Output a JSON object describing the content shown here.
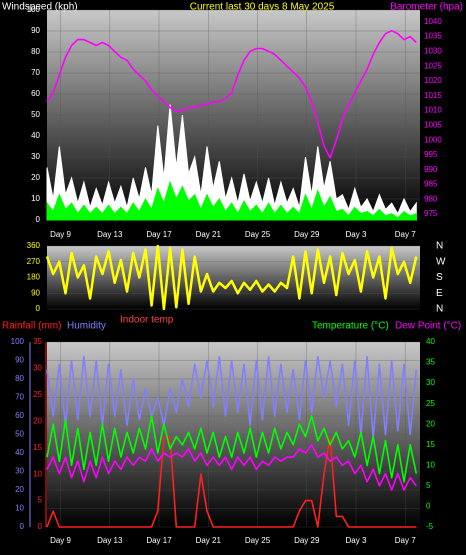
{
  "chart_data": [
    {
      "type": "line",
      "title": "Current last 30 days 8 May 2025",
      "ylabel": "Windspeed (kph)",
      "y2label": "Barometer (hpa)",
      "x": [
        0,
        0.5,
        1,
        1.5,
        2,
        2.5,
        3,
        3.5,
        4,
        4.5,
        5,
        5.5,
        6,
        6.5,
        7,
        7.5,
        8,
        8.5,
        9,
        9.5,
        10,
        10.5,
        11,
        11.5,
        12,
        12.5,
        13,
        13.5,
        14,
        14.5,
        15,
        15.5,
        16,
        16.5,
        17,
        17.5,
        18,
        18.5,
        19,
        19.5,
        20,
        20.5,
        21,
        21.5,
        22,
        22.5,
        23,
        23.5,
        24,
        24.5,
        25,
        25.5,
        26,
        26.5,
        27,
        27.5,
        28,
        28.5,
        29,
        29.5,
        30
      ],
      "xlim": [
        0,
        30.3
      ],
      "xticks": [
        {
          "value": 1.1,
          "label": "Day 9"
        },
        {
          "value": 5.1,
          "label": "Day 13"
        },
        {
          "value": 9.1,
          "label": "Day 17"
        },
        {
          "value": 13.1,
          "label": "Day 21"
        },
        {
          "value": 17.1,
          "label": "Day 25"
        },
        {
          "value": 21.1,
          "label": "Day 29"
        },
        {
          "value": 25.1,
          "label": "Day 3"
        },
        {
          "value": 29.1,
          "label": "Day 7"
        }
      ],
      "ylim": [
        0,
        100
      ],
      "yticks": [
        0,
        10,
        20,
        30,
        40,
        50,
        60,
        70,
        80,
        90,
        100
      ],
      "y2lim": [
        973,
        1044
      ],
      "y2ticks": [
        975,
        980,
        985,
        990,
        995,
        1000,
        1005,
        1010,
        1015,
        1020,
        1025,
        1030,
        1035,
        1040
      ],
      "grid": true,
      "series": [
        {
          "color": "#ffffff",
          "kind": "area",
          "values": [
            25,
            10,
            35,
            12,
            20,
            8,
            18,
            6,
            15,
            7,
            18,
            8,
            16,
            6,
            20,
            10,
            25,
            12,
            45,
            20,
            55,
            25,
            50,
            22,
            30,
            12,
            35,
            15,
            28,
            10,
            20,
            8,
            22,
            9,
            18,
            8,
            20,
            7,
            18,
            8,
            15,
            6,
            30,
            12,
            35,
            15,
            28,
            10,
            12,
            5,
            15,
            6,
            10,
            4,
            12,
            5,
            8,
            3,
            10,
            4,
            8
          ]
        },
        {
          "color": "#00ff00",
          "kind": "area",
          "values": [
            8,
            4,
            12,
            5,
            8,
            3,
            7,
            3,
            6,
            3,
            7,
            3,
            6,
            3,
            8,
            4,
            10,
            5,
            15,
            8,
            18,
            10,
            16,
            9,
            12,
            5,
            12,
            6,
            10,
            4,
            8,
            3,
            9,
            4,
            7,
            3,
            8,
            3,
            7,
            3,
            6,
            3,
            12,
            5,
            14,
            6,
            11,
            4,
            5,
            2,
            6,
            3,
            4,
            2,
            5,
            2,
            3,
            1,
            4,
            2,
            3
          ]
        },
        {
          "color": "#ff00ff",
          "kind": "line",
          "axis": "y2",
          "values": [
            1013,
            1016,
            1022,
            1028,
            1032,
            1034,
            1034,
            1033,
            1032,
            1033,
            1032,
            1030,
            1028,
            1027,
            1024,
            1022,
            1020,
            1017,
            1015,
            1013,
            1011,
            1010,
            1010,
            1011,
            1011,
            1012,
            1012,
            1013,
            1013,
            1014,
            1016,
            1022,
            1027,
            1030,
            1031,
            1031,
            1030,
            1029,
            1027,
            1025,
            1023,
            1021,
            1018,
            1013,
            1006,
            998,
            994,
            1000,
            1007,
            1012,
            1016,
            1020,
            1024,
            1029,
            1033,
            1036,
            1037,
            1036,
            1034,
            1035,
            1033
          ]
        }
      ]
    },
    {
      "type": "line",
      "x": [
        0,
        0.5,
        1,
        1.5,
        2,
        2.5,
        3,
        3.5,
        4,
        4.5,
        5,
        5.5,
        6,
        6.5,
        7,
        7.5,
        8,
        8.5,
        9,
        9.5,
        10,
        10.5,
        11,
        11.5,
        12,
        12.5,
        13,
        13.5,
        14,
        14.5,
        15,
        15.5,
        16,
        16.5,
        17,
        17.5,
        18,
        18.5,
        19,
        19.5,
        20,
        20.5,
        21,
        21.5,
        22,
        22.5,
        23,
        23.5,
        24,
        24.5,
        25,
        25.5,
        26,
        26.5,
        27,
        27.5,
        28,
        28.5,
        29,
        29.5,
        30
      ],
      "xlim": [
        0,
        30.3
      ],
      "ylim": [
        0,
        360
      ],
      "yticks": [
        0,
        90,
        180,
        270,
        360
      ],
      "y2lim": [
        0,
        360
      ],
      "y2ticks": [
        {
          "value": 0,
          "label": "N"
        },
        {
          "value": 90,
          "label": "E"
        },
        {
          "value": 180,
          "label": "S"
        },
        {
          "value": 270,
          "label": "W"
        },
        {
          "value": 360,
          "label": "N"
        }
      ],
      "grid": true,
      "series": [
        {
          "color": "#ffff00",
          "kind": "line",
          "values": [
            300,
            200,
            270,
            90,
            320,
            180,
            250,
            60,
            300,
            200,
            330,
            150,
            280,
            100,
            320,
            180,
            340,
            20,
            360,
            0,
            350,
            10,
            340,
            30,
            300,
            100,
            200,
            100,
            150,
            120,
            160,
            90,
            150,
            110,
            160,
            100,
            140,
            100,
            150,
            120,
            300,
            60,
            330,
            90,
            340,
            150,
            300,
            80,
            320,
            200,
            280,
            100,
            330,
            180,
            300,
            60,
            350,
            200,
            270,
            150,
            300
          ]
        }
      ]
    },
    {
      "type": "line",
      "annotation": "Indoor temp",
      "x": [
        0,
        0.5,
        1,
        1.5,
        2,
        2.5,
        3,
        3.5,
        4,
        4.5,
        5,
        5.5,
        6,
        6.5,
        7,
        7.5,
        8,
        8.5,
        9,
        9.5,
        10,
        10.5,
        11,
        11.5,
        12,
        12.5,
        13,
        13.5,
        14,
        14.5,
        15,
        15.5,
        16,
        16.5,
        17,
        17.5,
        18,
        18.5,
        19,
        19.5,
        20,
        20.5,
        21,
        21.5,
        22,
        22.5,
        23,
        23.5,
        24,
        24.5,
        25,
        25.5,
        26,
        26.5,
        27,
        27.5,
        28,
        28.5,
        29,
        29.5,
        30
      ],
      "xlim": [
        0,
        30.3
      ],
      "xticks": [
        {
          "value": 1.1,
          "label": "Day 9"
        },
        {
          "value": 5.1,
          "label": "Day 13"
        },
        {
          "value": 9.1,
          "label": "Day 17"
        },
        {
          "value": 13.1,
          "label": "Day 21"
        },
        {
          "value": 17.1,
          "label": "Day 25"
        },
        {
          "value": 21.1,
          "label": "Day 29"
        },
        {
          "value": 25.1,
          "label": "Day 3"
        },
        {
          "value": 29.1,
          "label": "Day 7"
        }
      ],
      "ylim": [
        0,
        100
      ],
      "yticks": [
        0,
        10,
        20,
        30,
        40,
        50,
        60,
        70,
        80,
        90,
        100
      ],
      "y3lim": [
        0,
        35
      ],
      "y3ticks": [
        0,
        5,
        10,
        15,
        20,
        25,
        30,
        35
      ],
      "y2lim": [
        -5,
        40
      ],
      "y2ticks": [
        -5,
        0,
        5,
        10,
        15,
        20,
        25,
        30,
        35,
        40
      ],
      "grid": true,
      "series": [
        {
          "name": "Rainfall (mm)",
          "color": "#ff2020",
          "kind": "line",
          "axis": "y3",
          "values": [
            0,
            3,
            0,
            0,
            0,
            0,
            0,
            0,
            0,
            0,
            0,
            0,
            0,
            0,
            0,
            0,
            0,
            0,
            3,
            17,
            17,
            0,
            0,
            0,
            0,
            10,
            3,
            0,
            0,
            0,
            0,
            0,
            0,
            0,
            0,
            0,
            0,
            0,
            0,
            0,
            0,
            3,
            5,
            5,
            0,
            10,
            17,
            2,
            2,
            0,
            0,
            0,
            0,
            0,
            0,
            0,
            0,
            0,
            0,
            0,
            0
          ]
        },
        {
          "name": "Humidity",
          "color": "#8080ff",
          "kind": "line",
          "values": [
            85,
            60,
            88,
            55,
            90,
            58,
            92,
            60,
            90,
            55,
            88,
            60,
            85,
            55,
            80,
            58,
            75,
            60,
            70,
            55,
            75,
            62,
            80,
            65,
            88,
            70,
            90,
            65,
            92,
            60,
            90,
            62,
            88,
            55,
            90,
            58,
            92,
            60,
            88,
            62,
            85,
            58,
            90,
            62,
            92,
            70,
            90,
            65,
            88,
            55,
            90,
            50,
            92,
            48,
            88,
            50,
            90,
            52,
            88,
            50,
            85
          ]
        },
        {
          "name": "Temperature (°C)",
          "color": "#00ff00",
          "kind": "line",
          "axis": "y2",
          "values": [
            12,
            20,
            11,
            21,
            10,
            19,
            9,
            18,
            10,
            20,
            11,
            19,
            12,
            18,
            13,
            19,
            14,
            22,
            13,
            20,
            14,
            17,
            15,
            18,
            14,
            19,
            13,
            18,
            12,
            17,
            12,
            18,
            13,
            19,
            12,
            18,
            13,
            19,
            14,
            18,
            15,
            20,
            17,
            22,
            16,
            19,
            15,
            18,
            14,
            16,
            12,
            18,
            10,
            17,
            8,
            16,
            7,
            15,
            6,
            15,
            8
          ]
        },
        {
          "name": "Dew Point (°C)",
          "color": "#ff00ff",
          "kind": "line",
          "axis": "y2",
          "values": [
            9,
            12,
            8,
            12,
            7,
            11,
            6,
            11,
            7,
            12,
            8,
            11,
            9,
            12,
            10,
            12,
            11,
            14,
            11,
            13,
            12,
            13,
            12,
            14,
            11,
            13,
            10,
            12,
            10,
            12,
            9,
            12,
            10,
            12,
            9,
            11,
            10,
            12,
            11,
            12,
            12,
            14,
            13,
            15,
            12,
            13,
            11,
            12,
            10,
            11,
            8,
            10,
            6,
            9,
            5,
            8,
            4,
            8,
            4,
            7,
            5
          ]
        }
      ]
    }
  ]
}
